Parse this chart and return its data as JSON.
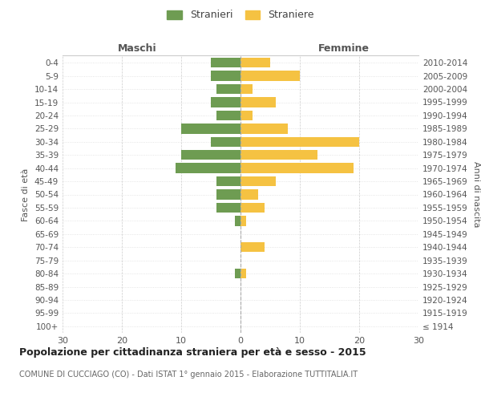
{
  "age_groups": [
    "100+",
    "95-99",
    "90-94",
    "85-89",
    "80-84",
    "75-79",
    "70-74",
    "65-69",
    "60-64",
    "55-59",
    "50-54",
    "45-49",
    "40-44",
    "35-39",
    "30-34",
    "25-29",
    "20-24",
    "15-19",
    "10-14",
    "5-9",
    "0-4"
  ],
  "birth_years": [
    "≤ 1914",
    "1915-1919",
    "1920-1924",
    "1925-1929",
    "1930-1934",
    "1935-1939",
    "1940-1944",
    "1945-1949",
    "1950-1954",
    "1955-1959",
    "1960-1964",
    "1965-1969",
    "1970-1974",
    "1975-1979",
    "1980-1984",
    "1985-1989",
    "1990-1994",
    "1995-1999",
    "2000-2004",
    "2005-2009",
    "2010-2014"
  ],
  "maschi": [
    0,
    0,
    0,
    0,
    1,
    0,
    0,
    0,
    1,
    4,
    4,
    4,
    11,
    10,
    5,
    10,
    4,
    5,
    4,
    5,
    5
  ],
  "femmine": [
    0,
    0,
    0,
    0,
    1,
    0,
    4,
    0,
    1,
    4,
    3,
    6,
    19,
    13,
    20,
    8,
    2,
    6,
    2,
    10,
    5
  ],
  "color_maschi": "#6e9c52",
  "color_femmine": "#f5c242",
  "title": "Popolazione per cittadinanza straniera per età e sesso - 2015",
  "subtitle": "COMUNE DI CUCCIAGO (CO) - Dati ISTAT 1° gennaio 2015 - Elaborazione TUTTITALIA.IT",
  "xlabel_left": "Maschi",
  "xlabel_right": "Femmine",
  "ylabel_left": "Fasce di età",
  "ylabel_right": "Anni di nascita",
  "legend_maschi": "Stranieri",
  "legend_femmine": "Straniere",
  "xlim": 30,
  "background_color": "#ffffff",
  "grid_color": "#cccccc",
  "grid_color_x": "#cccccc",
  "grid_color_y": "#dddddd"
}
